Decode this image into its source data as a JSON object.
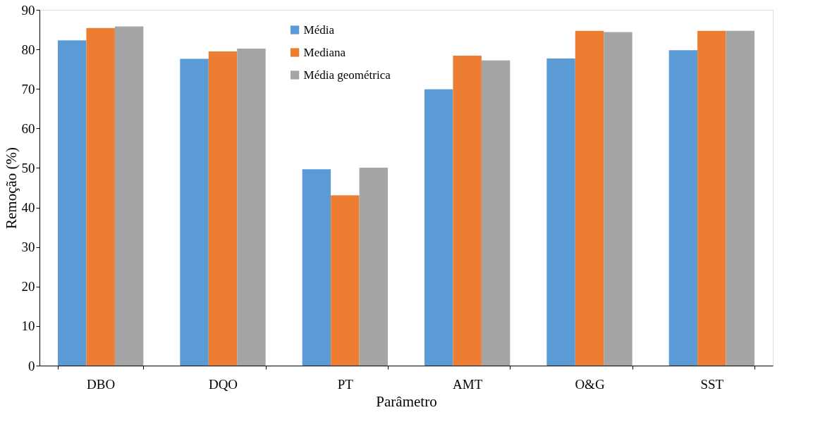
{
  "chart_data": {
    "type": "bar",
    "xlabel": "Parâmetro",
    "ylabel": "Remoção (%)",
    "categories": [
      "DBO",
      "DQO",
      "PT",
      "AMT",
      "O&G",
      "SST"
    ],
    "series": [
      {
        "name": "Média",
        "color": "#5b9bd5",
        "values": [
          82.3,
          77.6,
          49.7,
          69.9,
          77.7,
          79.8
        ]
      },
      {
        "name": "Mediana",
        "color": "#ed7d31",
        "values": [
          85.4,
          79.5,
          43.1,
          78.4,
          84.7,
          84.7
        ]
      },
      {
        "name": "Média geométrica",
        "color": "#a5a5a5",
        "values": [
          85.8,
          80.2,
          50.1,
          77.2,
          84.4,
          84.7
        ]
      }
    ],
    "ylim": [
      0,
      90
    ],
    "yticks": [
      0,
      10,
      20,
      30,
      40,
      50,
      60,
      70,
      80,
      90
    ],
    "grid": false,
    "legend": "top"
  }
}
